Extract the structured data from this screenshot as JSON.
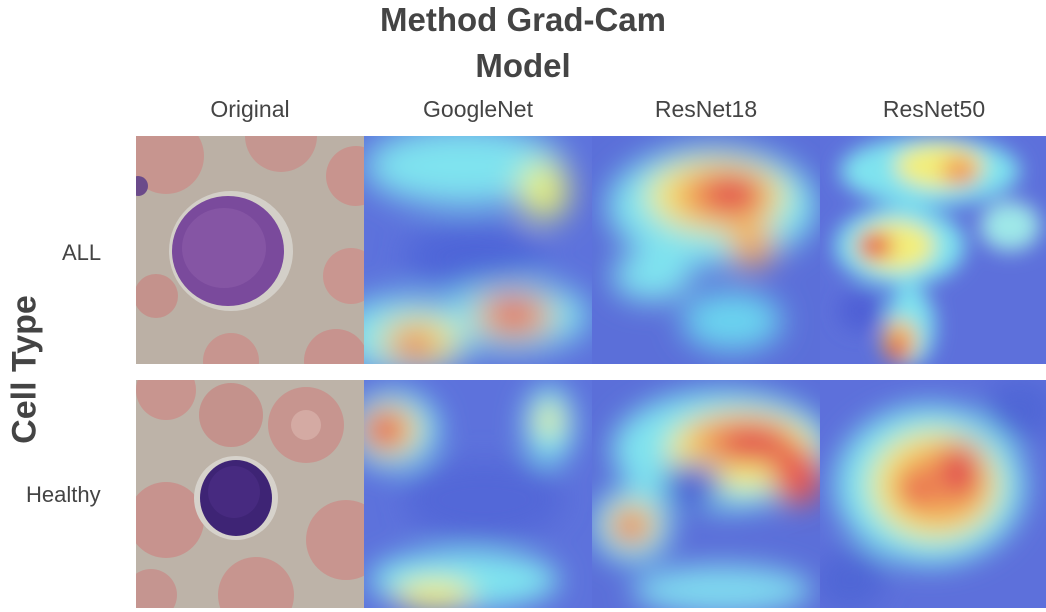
{
  "figure": {
    "title": "Method Grad-Cam",
    "subtitle": "Model",
    "row_axis_label": "Cell Type",
    "columns": [
      "Original",
      "GoogleNet",
      "ResNet18",
      "ResNet50"
    ],
    "rows": [
      "ALL",
      "Healthy"
    ]
  },
  "colors": {
    "heat_low": "#5a6fe0",
    "heat_mid": "#7fe6f0",
    "heat_yellow": "#f3ee7a",
    "heat_high": "#e8454a",
    "cell_nucleus_all": "#6f3f95",
    "cell_nucleus_healthy": "#3b2270",
    "rbc": "#c9958e",
    "background_smear": "#bdb3a7"
  }
}
